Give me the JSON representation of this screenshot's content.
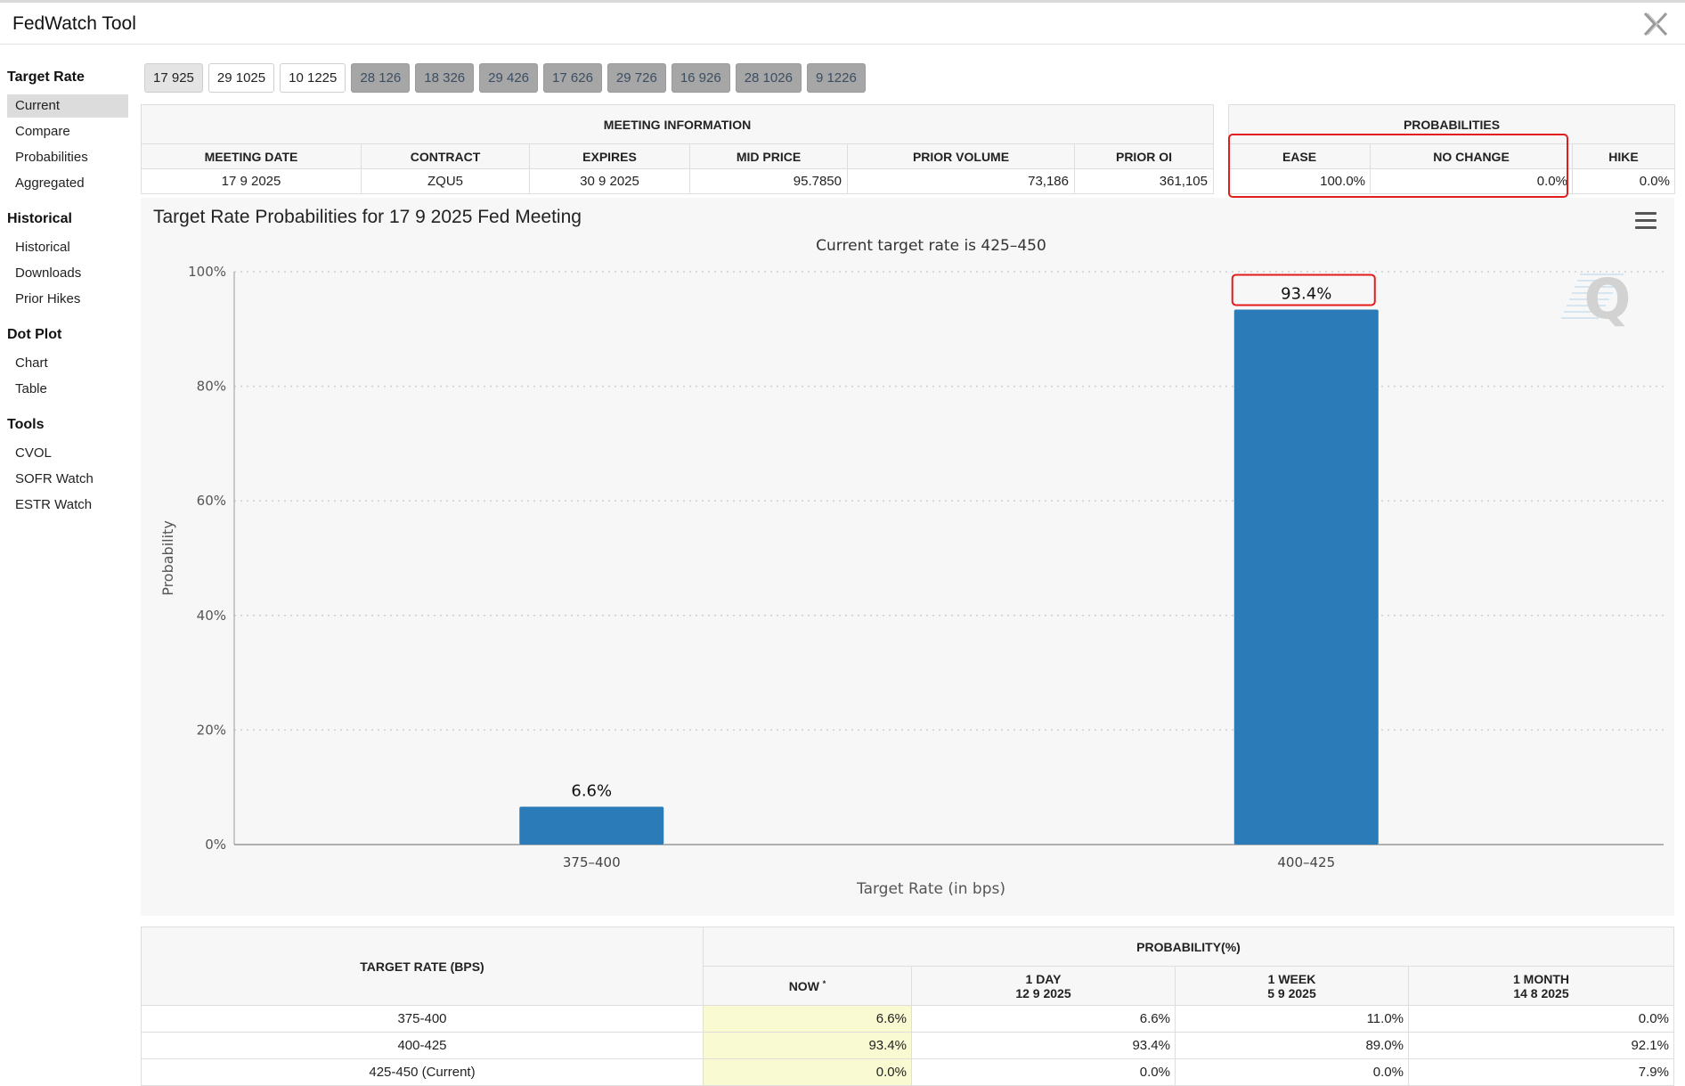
{
  "app": {
    "title": "FedWatch Tool"
  },
  "sidebar": {
    "sections": [
      {
        "title": "Target Rate",
        "items": [
          "Current",
          "Compare",
          "Probabilities",
          "Aggregated"
        ]
      },
      {
        "title": "Historical",
        "items": [
          "Historical",
          "Downloads",
          "Prior Hikes"
        ]
      },
      {
        "title": "Dot Plot",
        "items": [
          "Chart",
          "Table"
        ]
      },
      {
        "title": "Tools",
        "items": [
          "CVOL",
          "SOFR Watch",
          "ESTR Watch"
        ]
      }
    ],
    "active_item": "Current"
  },
  "date_tabs": [
    "17 925",
    "29 1025",
    "10 1225",
    "28 126",
    "18 326",
    "29 426",
    "17 626",
    "29 726",
    "16 926",
    "28 1026",
    "9 1226"
  ],
  "meeting_info": {
    "header": "MEETING INFORMATION",
    "columns": [
      "MEETING DATE",
      "CONTRACT",
      "EXPIRES",
      "MID PRICE",
      "PRIOR VOLUME",
      "PRIOR OI"
    ],
    "row": [
      "17 9 2025",
      "ZQU5",
      "30 9 2025",
      "95.7850",
      "73,186",
      "361,105"
    ]
  },
  "probabilities": {
    "header": "PROBABILITIES",
    "columns": [
      "EASE",
      "NO CHANGE",
      "HIKE"
    ],
    "row": [
      "100.0%",
      "0.0%",
      "0.0%"
    ]
  },
  "chart": {
    "title": "Target Rate Probabilities for 17 9 2025 Fed Meeting",
    "watermark": "Q"
  },
  "chart_data": {
    "type": "bar",
    "title": "Target Rate Probabilities for 17 9 2025 Fed Meeting",
    "subtitle": "Current target rate is 425–450",
    "categories": [
      "375–400",
      "400–425"
    ],
    "values": [
      6.6,
      93.4
    ],
    "data_labels": [
      "6.6%",
      "93.4%"
    ],
    "xlabel": "Target Rate (in bps)",
    "ylabel": "Probability",
    "ylim": [
      0,
      100
    ],
    "yticks": [
      "0%",
      "20%",
      "40%",
      "60%",
      "80%",
      "100%"
    ],
    "grid": true,
    "bar_color": "#2b7bb9"
  },
  "history_table": {
    "rate_header": "TARGET RATE (BPS)",
    "prob_header": "PROBABILITY(%)",
    "columns": [
      {
        "label": "NOW",
        "sub": ""
      },
      {
        "label": "1 DAY",
        "sub": "12 9 2025"
      },
      {
        "label": "1 WEEK",
        "sub": "5 9 2025"
      },
      {
        "label": "1 MONTH",
        "sub": "14 8 2025"
      }
    ],
    "now_mark": "*",
    "rows": [
      {
        "rate": "375-400",
        "values": [
          "6.6%",
          "6.6%",
          "11.0%",
          "0.0%"
        ]
      },
      {
        "rate": "400-425",
        "values": [
          "93.4%",
          "93.4%",
          "89.0%",
          "92.1%"
        ]
      },
      {
        "rate": "425-450 (Current)",
        "values": [
          "0.0%",
          "0.0%",
          "0.0%",
          "7.9%"
        ]
      }
    ]
  }
}
